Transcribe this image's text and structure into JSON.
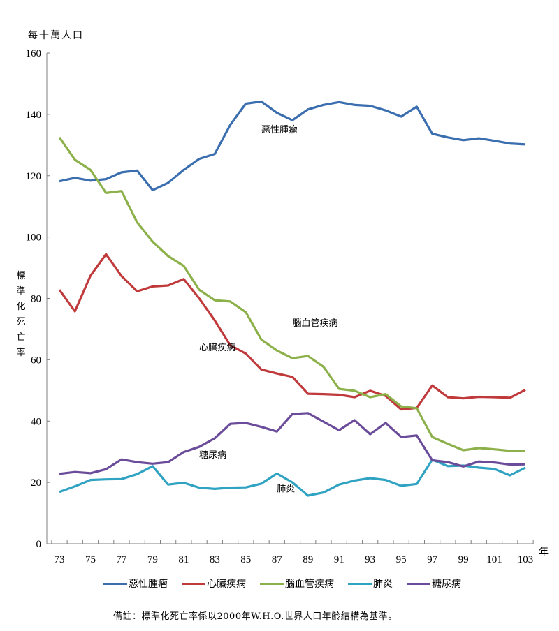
{
  "chart_data": {
    "type": "line",
    "title": "",
    "ylabel_top": "每十萬人口",
    "ylabel": "標準化死亡率",
    "xlabel": "年",
    "ylim": [
      0,
      160
    ],
    "yticks": [
      0,
      20,
      40,
      60,
      80,
      100,
      120,
      140,
      160
    ],
    "xlim": [
      73,
      103
    ],
    "xtick_labels": [
      "73",
      "75",
      "77",
      "79",
      "81",
      "83",
      "85",
      "87",
      "89",
      "91",
      "93",
      "95",
      "97",
      "99",
      "101",
      "103"
    ],
    "x": [
      73,
      74,
      75,
      76,
      77,
      78,
      79,
      80,
      81,
      82,
      83,
      84,
      85,
      86,
      87,
      88,
      89,
      90,
      91,
      92,
      93,
      94,
      95,
      96,
      97,
      98,
      99,
      100,
      101,
      102,
      103
    ],
    "grid": false,
    "legend_position": "bottom",
    "series": [
      {
        "name": "惡性腫瘤",
        "color": "#3A6EAF",
        "label_year": 86,
        "label_value": 134,
        "values": [
          118.2,
          119.3,
          118.4,
          118.9,
          121.1,
          121.7,
          115.3,
          117.7,
          121.9,
          125.5,
          127.1,
          136.6,
          143.5,
          144.2,
          140.5,
          138.1,
          141.6,
          143.1,
          144.0,
          143.1,
          142.8,
          141.3,
          139.3,
          142.5,
          133.7,
          132.5,
          131.6,
          132.2,
          131.4,
          130.5,
          130.2
        ]
      },
      {
        "name": "心臟疾病",
        "color": "#C0393B",
        "label_year": 82,
        "label_value": 63,
        "values": [
          82.8,
          75.8,
          87.4,
          94.4,
          87.3,
          82.3,
          83.9,
          84.2,
          86.3,
          80.0,
          72.8,
          64.7,
          62.0,
          56.8,
          55.5,
          54.4,
          48.9,
          48.8,
          48.6,
          47.8,
          49.9,
          48.2,
          43.8,
          44.3,
          51.6,
          47.8,
          47.4,
          47.9,
          47.8,
          47.6,
          50.2
        ]
      },
      {
        "name": "腦血管疾病",
        "color": "#8CB04A",
        "label_year": 88,
        "label_value": 71,
        "values": [
          132.5,
          125.2,
          121.9,
          114.4,
          115.0,
          104.8,
          98.5,
          93.8,
          90.6,
          82.8,
          79.4,
          79.0,
          75.5,
          66.6,
          63.0,
          60.5,
          61.2,
          57.7,
          50.5,
          49.9,
          47.8,
          48.8,
          44.8,
          44.2,
          34.8,
          32.6,
          30.5,
          31.2,
          30.8,
          30.3,
          30.3
        ]
      },
      {
        "name": "肺炎",
        "color": "#30A2C2",
        "label_year": 87,
        "label_value": 17,
        "values": [
          16.9,
          18.7,
          20.8,
          21.0,
          21.1,
          22.7,
          25.3,
          19.3,
          19.9,
          18.3,
          17.9,
          18.3,
          18.4,
          19.6,
          22.9,
          20.0,
          15.7,
          16.7,
          19.3,
          20.6,
          21.4,
          20.8,
          18.9,
          19.5,
          27.4,
          25.3,
          25.5,
          24.8,
          24.4,
          22.3,
          24.8
        ]
      },
      {
        "name": "糖尿病",
        "color": "#6B4C9A",
        "label_year": 82,
        "label_value": 28,
        "values": [
          22.8,
          23.4,
          23.0,
          24.3,
          27.5,
          26.6,
          26.1,
          26.6,
          29.9,
          31.6,
          34.4,
          39.1,
          39.4,
          38.1,
          36.6,
          42.3,
          42.6,
          39.8,
          37.0,
          40.3,
          35.7,
          39.4,
          34.8,
          35.3,
          27.2,
          26.6,
          25.2,
          26.8,
          26.5,
          25.8,
          25.9
        ]
      }
    ]
  },
  "note": "備註：標準化死亡率係以2000年W.H.O.世界人口年齡結構為基準。"
}
